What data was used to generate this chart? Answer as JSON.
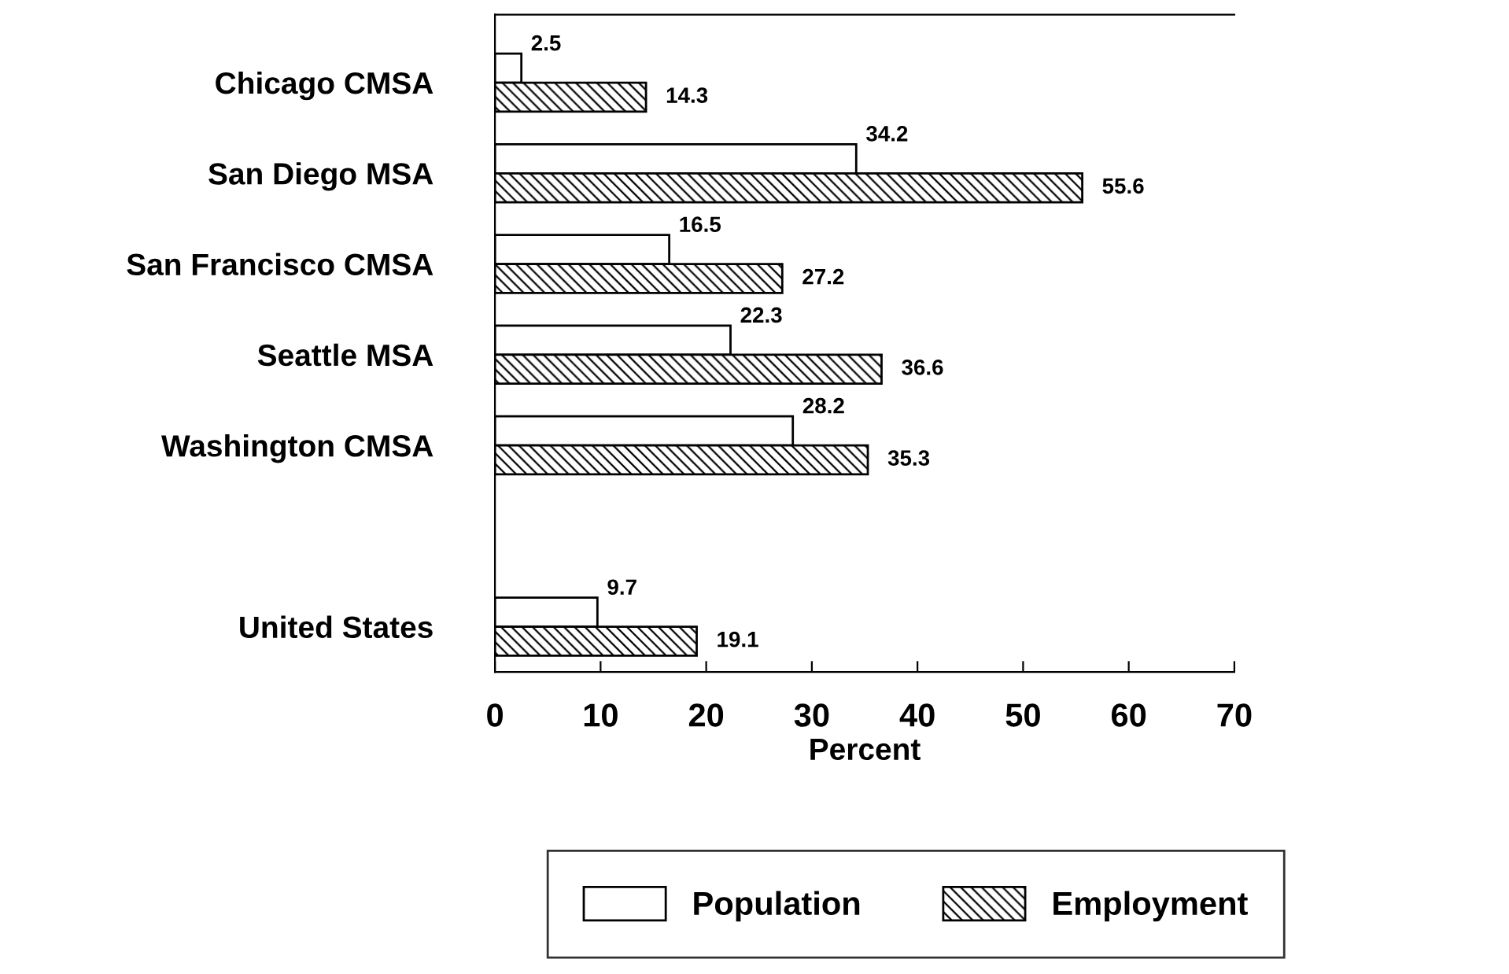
{
  "chart_data": {
    "type": "bar",
    "orientation": "horizontal",
    "xlabel": "Percent",
    "categories": [
      "Chicago CMSA",
      "San Diego MSA",
      "San Francisco CMSA",
      "Seattle MSA",
      "Washington CMSA",
      null,
      "United States"
    ],
    "series": [
      {
        "name": "Population",
        "color": "#ffffff",
        "values": [
          2.5,
          34.2,
          16.5,
          22.3,
          28.2,
          null,
          9.7
        ]
      },
      {
        "name": "Employment",
        "color": "#000000",
        "values": [
          14.3,
          55.6,
          27.2,
          36.6,
          35.3,
          null,
          19.1
        ]
      }
    ],
    "xlim": [
      0,
      70
    ],
    "xticks": [
      0,
      10,
      20,
      30,
      40,
      50,
      60,
      70
    ],
    "data_labels": true,
    "legend": "bottom",
    "grid": false
  }
}
